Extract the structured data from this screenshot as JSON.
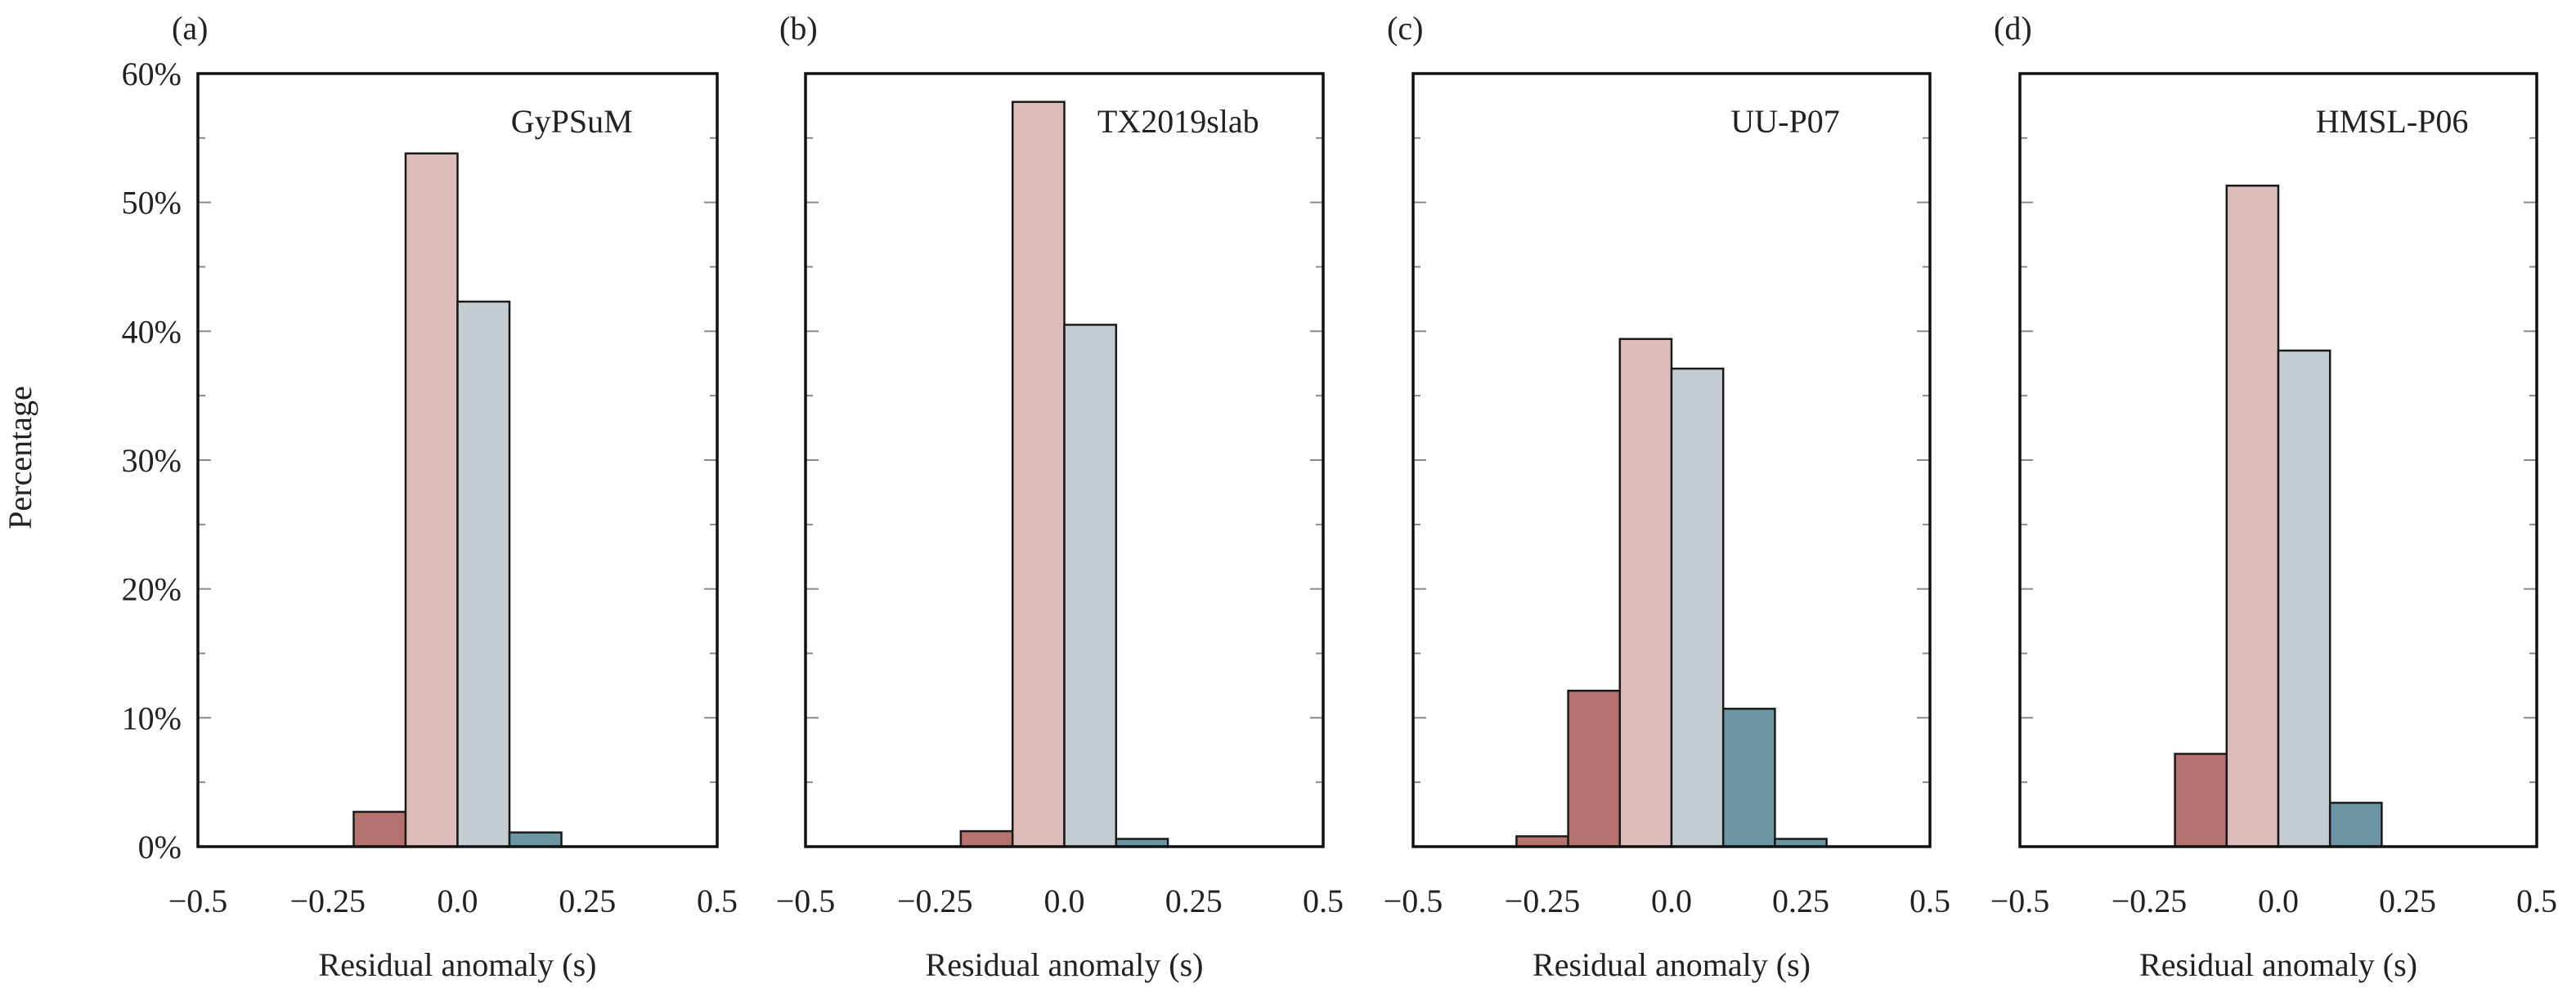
{
  "figure": {
    "ylabel": "Percentage",
    "xlabel": "Residual anomaly (s)"
  },
  "colors": {
    "bin_-0.15": "#b5726e",
    "bin_-0.05": "#dcbdb9",
    "bin_0.05": "#c4cdd1",
    "bin_0.15": "#6c96a5"
  },
  "chart_data": [
    {
      "type": "bar",
      "panel_label": "(a)",
      "model_name": "GyPSuM",
      "xlabel": "Residual anomaly (s)",
      "ylabel": "Percentage",
      "xlim": [
        -0.5,
        0.5
      ],
      "ylim": [
        0,
        60
      ],
      "xticks": [
        "−0.5",
        "−0.25",
        "0.0",
        "0.25",
        "0.5"
      ],
      "yticks": [
        "0%",
        "10%",
        "20%",
        "30%",
        "40%",
        "50%",
        "60%"
      ],
      "bin_width": 0.1,
      "bin_centers": [
        -0.25,
        -0.15,
        -0.05,
        0.05,
        0.15,
        0.25
      ],
      "values": [
        0,
        2.7,
        53.8,
        42.3,
        1.1,
        0
      ]
    },
    {
      "type": "bar",
      "panel_label": "(b)",
      "model_name": "TX2019slab",
      "xlabel": "Residual anomaly (s)",
      "xlim": [
        -0.5,
        0.5
      ],
      "ylim": [
        0,
        60
      ],
      "xticks": [
        "−0.5",
        "−0.25",
        "0.0",
        "0.25",
        "0.5"
      ],
      "bin_width": 0.1,
      "bin_centers": [
        -0.25,
        -0.15,
        -0.05,
        0.05,
        0.15,
        0.25
      ],
      "values": [
        0,
        1.2,
        57.8,
        40.5,
        0.6,
        0
      ]
    },
    {
      "type": "bar",
      "panel_label": "(c)",
      "model_name": "UU-P07",
      "xlabel": "Residual anomaly (s)",
      "xlim": [
        -0.5,
        0.5
      ],
      "ylim": [
        0,
        60
      ],
      "xticks": [
        "−0.5",
        "−0.25",
        "0.0",
        "0.25",
        "0.5"
      ],
      "bin_width": 0.1,
      "bin_centers": [
        -0.25,
        -0.15,
        -0.05,
        0.05,
        0.15,
        0.25
      ],
      "values": [
        0.8,
        12.1,
        39.4,
        37.1,
        10.7,
        0.6
      ]
    },
    {
      "type": "bar",
      "panel_label": "(d)",
      "model_name": "HMSL-P06",
      "xlabel": "Residual anomaly (s)",
      "xlim": [
        -0.5,
        0.5
      ],
      "ylim": [
        0,
        60
      ],
      "xticks": [
        "−0.5",
        "−0.25",
        "0.0",
        "0.25",
        "0.5"
      ],
      "bin_width": 0.1,
      "bin_centers": [
        -0.25,
        -0.15,
        -0.05,
        0.05,
        0.15,
        0.25
      ],
      "values": [
        0,
        7.2,
        51.3,
        38.5,
        3.4,
        0
      ]
    }
  ]
}
